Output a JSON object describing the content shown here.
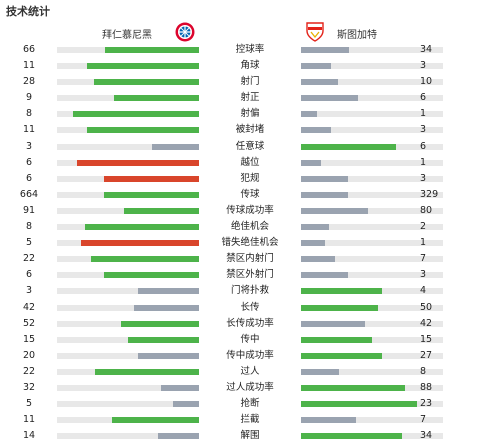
{
  "title": "技术统计",
  "home": {
    "name": "拜仁慕尼黑",
    "logo": "fc-bayern-logo"
  },
  "away": {
    "name": "斯图加特",
    "logo": "vfb-stuttgart-logo"
  },
  "colors": {
    "green": "#4db34a",
    "red": "#d9452b",
    "gray": "#9aa3b0",
    "track": "#e8e8e8"
  },
  "stats": [
    {
      "label": "控球率",
      "home": "66",
      "away": "34",
      "home_frac": 0.66,
      "away_frac": 0.34,
      "home_color": "green",
      "away_color": "gray"
    },
    {
      "label": "角球",
      "home": "11",
      "away": "3",
      "home_frac": 0.79,
      "away_frac": 0.21,
      "home_color": "green",
      "away_color": "gray"
    },
    {
      "label": "射门",
      "home": "28",
      "away": "10",
      "home_frac": 0.74,
      "away_frac": 0.26,
      "home_color": "green",
      "away_color": "gray"
    },
    {
      "label": "射正",
      "home": "9",
      "away": "6",
      "home_frac": 0.6,
      "away_frac": 0.4,
      "home_color": "green",
      "away_color": "gray"
    },
    {
      "label": "射偏",
      "home": "8",
      "away": "1",
      "home_frac": 0.89,
      "away_frac": 0.11,
      "home_color": "green",
      "away_color": "gray"
    },
    {
      "label": "被封堵",
      "home": "11",
      "away": "3",
      "home_frac": 0.79,
      "away_frac": 0.21,
      "home_color": "green",
      "away_color": "gray"
    },
    {
      "label": "任意球",
      "home": "3",
      "away": "6",
      "home_frac": 0.33,
      "away_frac": 0.67,
      "home_color": "gray",
      "away_color": "green"
    },
    {
      "label": "越位",
      "home": "6",
      "away": "1",
      "home_frac": 0.86,
      "away_frac": 0.14,
      "home_color": "red",
      "away_color": "gray"
    },
    {
      "label": "犯规",
      "home": "6",
      "away": "3",
      "home_frac": 0.67,
      "away_frac": 0.33,
      "home_color": "red",
      "away_color": "gray"
    },
    {
      "label": "传球",
      "home": "664",
      "away": "329",
      "home_frac": 0.67,
      "away_frac": 0.33,
      "home_color": "green",
      "away_color": "gray"
    },
    {
      "label": "传球成功率",
      "home": "91",
      "away": "80",
      "home_frac": 0.53,
      "away_frac": 0.47,
      "home_color": "green",
      "away_color": "gray"
    },
    {
      "label": "绝佳机会",
      "home": "8",
      "away": "2",
      "home_frac": 0.8,
      "away_frac": 0.2,
      "home_color": "green",
      "away_color": "gray"
    },
    {
      "label": "错失绝佳机会",
      "home": "5",
      "away": "1",
      "home_frac": 0.83,
      "away_frac": 0.17,
      "home_color": "red",
      "away_color": "gray"
    },
    {
      "label": "禁区内射门",
      "home": "22",
      "away": "7",
      "home_frac": 0.76,
      "away_frac": 0.24,
      "home_color": "green",
      "away_color": "gray"
    },
    {
      "label": "禁区外射门",
      "home": "6",
      "away": "3",
      "home_frac": 0.67,
      "away_frac": 0.33,
      "home_color": "green",
      "away_color": "gray"
    },
    {
      "label": "门将扑救",
      "home": "3",
      "away": "4",
      "home_frac": 0.43,
      "away_frac": 0.57,
      "home_color": "gray",
      "away_color": "green"
    },
    {
      "label": "长传",
      "home": "42",
      "away": "50",
      "home_frac": 0.46,
      "away_frac": 0.54,
      "home_color": "gray",
      "away_color": "green"
    },
    {
      "label": "长传成功率",
      "home": "52",
      "away": "42",
      "home_frac": 0.55,
      "away_frac": 0.45,
      "home_color": "green",
      "away_color": "gray"
    },
    {
      "label": "传中",
      "home": "15",
      "away": "15",
      "home_frac": 0.5,
      "away_frac": 0.5,
      "home_color": "green",
      "away_color": "green"
    },
    {
      "label": "传中成功率",
      "home": "20",
      "away": "27",
      "home_frac": 0.43,
      "away_frac": 0.57,
      "home_color": "gray",
      "away_color": "green"
    },
    {
      "label": "过人",
      "home": "22",
      "away": "8",
      "home_frac": 0.73,
      "away_frac": 0.27,
      "home_color": "green",
      "away_color": "gray"
    },
    {
      "label": "过人成功率",
      "home": "32",
      "away": "88",
      "home_frac": 0.27,
      "away_frac": 0.73,
      "home_color": "gray",
      "away_color": "green"
    },
    {
      "label": "抢断",
      "home": "5",
      "away": "23",
      "home_frac": 0.18,
      "away_frac": 0.82,
      "home_color": "gray",
      "away_color": "green"
    },
    {
      "label": "拦截",
      "home": "11",
      "away": "7",
      "home_frac": 0.61,
      "away_frac": 0.39,
      "home_color": "green",
      "away_color": "gray"
    },
    {
      "label": "解围",
      "home": "14",
      "away": "34",
      "home_frac": 0.29,
      "away_frac": 0.71,
      "home_color": "gray",
      "away_color": "green"
    }
  ]
}
